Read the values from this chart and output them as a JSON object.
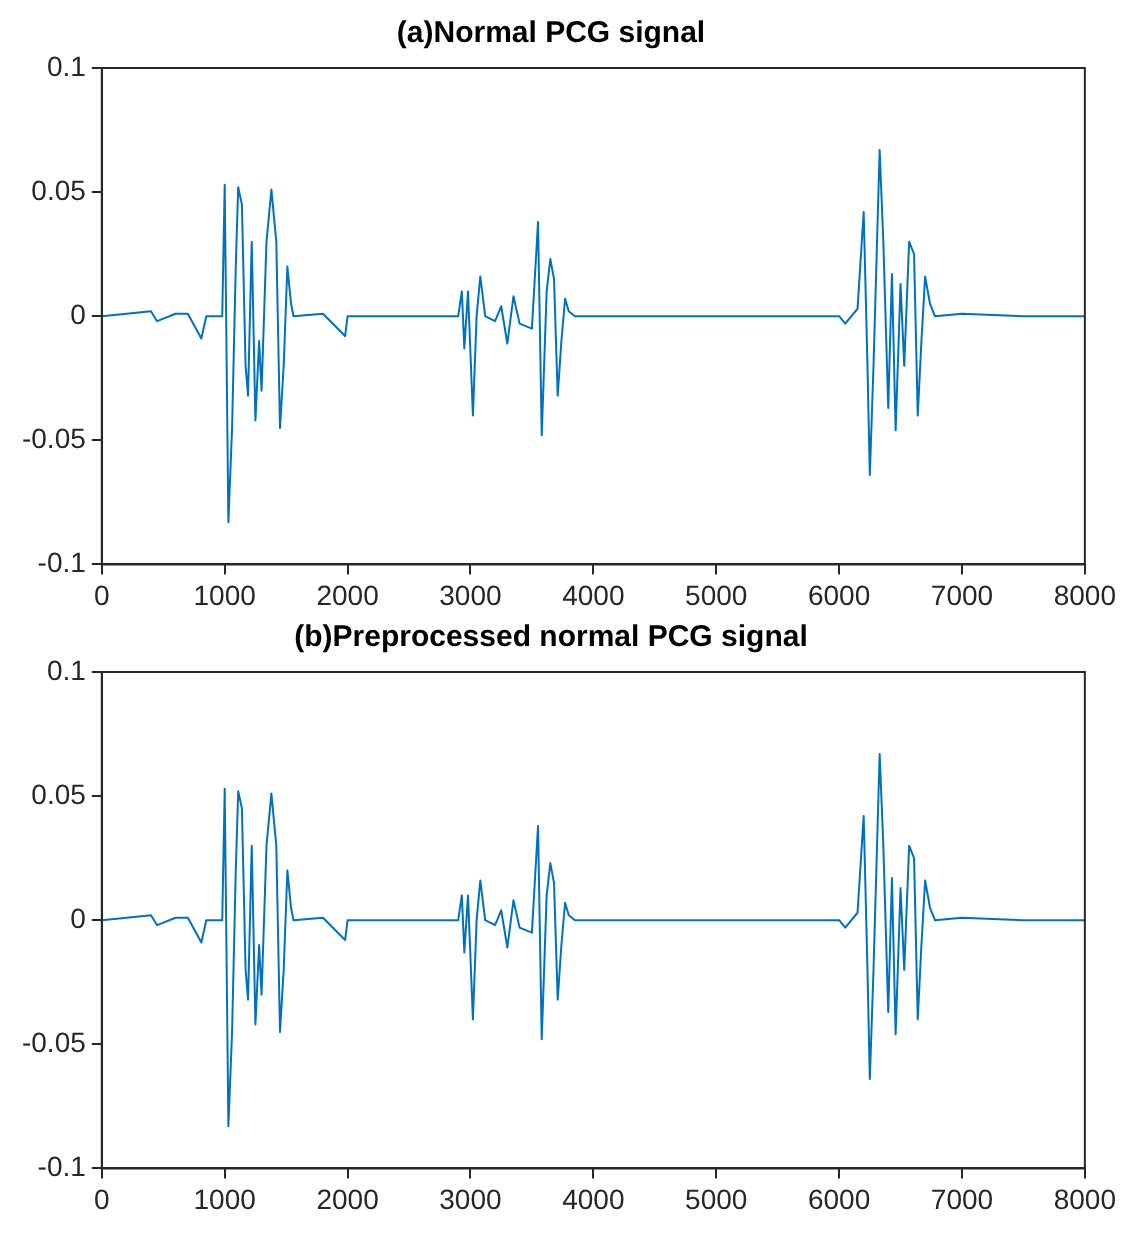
{
  "chart_data": [
    {
      "type": "line",
      "title": "(a)Normal PCG signal",
      "x": [
        0,
        200,
        400,
        450,
        600,
        700,
        810,
        850,
        980,
        1000,
        1030,
        1060,
        1090,
        1110,
        1140,
        1170,
        1190,
        1220,
        1250,
        1280,
        1300,
        1340,
        1380,
        1420,
        1450,
        1480,
        1510,
        1540,
        1560,
        1800,
        1980,
        2000,
        2500,
        2900,
        2930,
        2950,
        2980,
        3020,
        3050,
        3080,
        3120,
        3200,
        3250,
        3300,
        3350,
        3400,
        3500,
        3550,
        3580,
        3620,
        3650,
        3680,
        3710,
        3740,
        3770,
        3800,
        3850,
        5000,
        6000,
        6050,
        6150,
        6200,
        6230,
        6250,
        6280,
        6330,
        6360,
        6400,
        6430,
        6460,
        6500,
        6530,
        6570,
        6610,
        6640,
        6670,
        6700,
        6740,
        6780,
        7000,
        7500,
        8000
      ],
      "series": [
        {
          "color": "#0072bd",
          "values": [
            0,
            0.001,
            0.002,
            -0.002,
            0.001,
            0.001,
            -0.009,
            0,
            0,
            0.053,
            -0.083,
            -0.045,
            0.02,
            0.052,
            0.045,
            -0.02,
            -0.032,
            0.03,
            -0.042,
            -0.01,
            -0.03,
            0.03,
            0.051,
            0.03,
            -0.045,
            -0.02,
            0.02,
            0.005,
            0,
            0.001,
            -0.008,
            0,
            0,
            0,
            0.01,
            -0.013,
            0.01,
            -0.04,
            0,
            0.016,
            0,
            -0.002,
            0.004,
            -0.011,
            0.008,
            -0.003,
            -0.005,
            0.038,
            -0.048,
            0.01,
            0.023,
            0.015,
            -0.032,
            -0.01,
            0.007,
            0.002,
            0,
            0,
            0,
            -0.003,
            0.003,
            0.042,
            -0.018,
            -0.064,
            -0.02,
            0.067,
            0.03,
            -0.037,
            0.017,
            -0.046,
            0.013,
            -0.02,
            0.03,
            0.025,
            -0.04,
            -0.01,
            0.016,
            0.005,
            0,
            0.001,
            0,
            0
          ]
        }
      ],
      "xlim": [
        0,
        8000
      ],
      "xticks": [
        0,
        1000,
        2000,
        3000,
        4000,
        5000,
        6000,
        7000,
        8000
      ],
      "ylim": [
        -0.1,
        0.1
      ],
      "yticks": [
        -0.1,
        -0.05,
        0,
        0.05,
        0.1
      ],
      "grid": false,
      "legend": false,
      "marker": "none",
      "line_style": "solid"
    },
    {
      "type": "line",
      "title": "(b)Preprocessed normal PCG signal",
      "x": [
        0,
        200,
        400,
        450,
        600,
        700,
        810,
        850,
        980,
        1000,
        1030,
        1060,
        1090,
        1110,
        1140,
        1170,
        1190,
        1220,
        1250,
        1280,
        1300,
        1340,
        1380,
        1420,
        1450,
        1480,
        1510,
        1540,
        1560,
        1800,
        1980,
        2000,
        2500,
        2900,
        2930,
        2950,
        2980,
        3020,
        3050,
        3080,
        3120,
        3200,
        3250,
        3300,
        3350,
        3400,
        3500,
        3550,
        3580,
        3620,
        3650,
        3680,
        3710,
        3740,
        3770,
        3800,
        3850,
        5000,
        6000,
        6050,
        6150,
        6200,
        6230,
        6250,
        6280,
        6330,
        6360,
        6400,
        6430,
        6460,
        6500,
        6530,
        6570,
        6610,
        6640,
        6670,
        6700,
        6740,
        6780,
        7000,
        7500,
        8000
      ],
      "series": [
        {
          "color": "#0072bd",
          "values": [
            0,
            0.001,
            0.002,
            -0.002,
            0.001,
            0.001,
            -0.009,
            0,
            0,
            0.053,
            -0.083,
            -0.045,
            0.02,
            0.052,
            0.045,
            -0.02,
            -0.032,
            0.03,
            -0.042,
            -0.01,
            -0.03,
            0.03,
            0.051,
            0.03,
            -0.045,
            -0.02,
            0.02,
            0.005,
            0,
            0.001,
            -0.008,
            0,
            0,
            0,
            0.01,
            -0.013,
            0.01,
            -0.04,
            0,
            0.016,
            0,
            -0.002,
            0.004,
            -0.011,
            0.008,
            -0.003,
            -0.005,
            0.038,
            -0.048,
            0.01,
            0.023,
            0.015,
            -0.032,
            -0.01,
            0.007,
            0.002,
            0,
            0,
            0,
            -0.003,
            0.003,
            0.042,
            -0.018,
            -0.064,
            -0.02,
            0.067,
            0.03,
            -0.037,
            0.017,
            -0.046,
            0.013,
            -0.02,
            0.03,
            0.025,
            -0.04,
            -0.01,
            0.016,
            0.005,
            0,
            0.001,
            0,
            0
          ]
        }
      ],
      "xlim": [
        0,
        8000
      ],
      "xticks": [
        0,
        1000,
        2000,
        3000,
        4000,
        5000,
        6000,
        7000,
        8000
      ],
      "ylim": [
        -0.1,
        0.1
      ],
      "yticks": [
        -0.1,
        -0.05,
        0,
        0.05,
        0.1
      ],
      "grid": false,
      "legend": false,
      "marker": "none",
      "line_style": "solid"
    }
  ]
}
